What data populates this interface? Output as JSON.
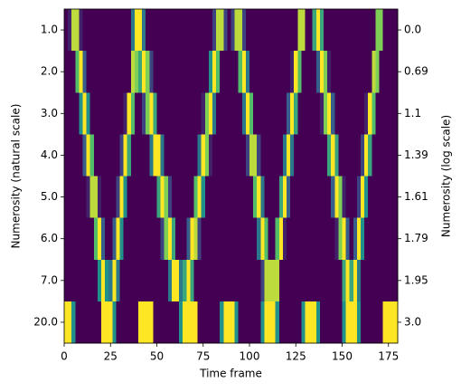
{
  "chart_data": {
    "type": "heatmap",
    "xlabel": "Time frame",
    "ylabel": "Numerosity (natural scale)",
    "y2label": "Numerosity (log scale)",
    "categories": [
      "1.0",
      "2.0",
      "3.0",
      "4.0",
      "5.0",
      "6.0",
      "7.0",
      "20.0"
    ],
    "y2categories": [
      "0.0",
      "0.69",
      "1.1",
      "1.39",
      "1.61",
      "1.79",
      "1.95",
      "3.0"
    ],
    "xlim": [
      0,
      180
    ],
    "xticks": [
      0,
      25,
      50,
      75,
      100,
      125,
      150,
      175
    ],
    "vlim": [
      0,
      1
    ],
    "colormap": [
      "#440154",
      "#3b528b",
      "#21918c",
      "#5ec962",
      "#fde725"
    ],
    "values": [
      [
        0,
        0.1,
        0.9,
        0.9,
        0.1,
        0,
        0,
        0,
        0,
        0,
        0,
        0,
        0,
        0,
        0,
        0,
        0,
        0,
        0.4,
        1,
        1,
        0.4,
        0,
        0,
        0,
        0,
        0,
        0,
        0,
        0,
        0,
        0,
        0,
        0,
        0,
        0,
        0,
        0,
        0,
        0,
        0.2,
        0.9,
        0.9,
        0.2,
        0,
        0.2,
        0.9,
        0.9,
        0.2,
        0,
        0,
        0,
        0,
        0,
        0,
        0,
        0,
        0,
        0,
        0,
        0,
        0,
        0,
        0.9,
        0.9,
        0,
        0,
        0.6,
        1,
        0.6,
        0,
        0,
        0,
        0,
        0,
        0,
        0,
        0,
        0,
        0,
        0,
        0,
        0,
        0,
        0.8,
        0.8,
        0,
        0,
        0,
        0
      ],
      [
        0,
        0,
        0,
        0.7,
        1,
        0.3,
        0,
        0,
        0,
        0,
        0,
        0,
        0,
        0,
        0,
        0,
        0,
        0,
        0.9,
        0.8,
        0.6,
        1,
        0.8,
        0.2,
        0,
        0,
        0,
        0,
        0,
        0,
        0,
        0,
        0,
        0,
        0,
        0,
        0,
        0,
        0,
        0.5,
        1,
        0.7,
        0,
        0,
        0,
        0,
        0,
        0.7,
        1,
        0.4,
        0,
        0,
        0,
        0,
        0,
        0,
        0,
        0,
        0,
        0,
        0,
        0.1,
        1,
        0.7,
        0,
        0,
        0,
        0,
        0.3,
        1,
        0.8,
        0.1,
        0,
        0,
        0,
        0,
        0,
        0,
        0,
        0,
        0,
        0,
        0,
        0.9,
        0.8,
        0,
        0,
        0,
        0,
        0
      ],
      [
        0,
        0,
        0,
        0,
        0.5,
        1,
        0.5,
        0,
        0,
        0,
        0,
        0,
        0,
        0,
        0,
        0,
        0.1,
        1,
        0.7,
        0,
        0,
        0.2,
        0.8,
        1,
        0.6,
        0,
        0,
        0,
        0,
        0,
        0,
        0,
        0,
        0,
        0,
        0,
        0,
        0.1,
        0.8,
        1,
        0.4,
        0,
        0,
        0,
        0,
        0,
        0,
        0,
        0.4,
        1,
        0.7,
        0,
        0,
        0,
        0,
        0,
        0,
        0,
        0,
        0,
        0.3,
        1,
        0.6,
        0,
        0,
        0,
        0,
        0,
        0,
        0.1,
        0.8,
        1,
        0.3,
        0,
        0,
        0,
        0,
        0,
        0,
        0,
        0,
        0.1,
        1,
        0.7,
        0,
        0,
        0,
        0,
        0,
        0
      ],
      [
        0,
        0,
        0,
        0,
        0,
        0.3,
        1,
        0.7,
        0,
        0,
        0,
        0,
        0,
        0,
        0,
        0.2,
        1,
        0.6,
        0,
        0,
        0,
        0,
        0,
        0.4,
        1,
        1,
        0.4,
        0,
        0,
        0,
        0,
        0,
        0,
        0,
        0,
        0,
        0.4,
        1,
        0.8,
        0.1,
        0,
        0,
        0,
        0,
        0,
        0,
        0,
        0,
        0,
        0.2,
        0.9,
        0.9,
        0.2,
        0,
        0,
        0,
        0,
        0,
        0,
        0.4,
        1,
        0.4,
        0,
        0,
        0,
        0,
        0,
        0,
        0,
        0,
        0,
        0.6,
        1,
        0.6,
        0,
        0,
        0,
        0,
        0,
        0,
        0.2,
        1,
        0.6,
        0,
        0,
        0,
        0,
        0,
        0,
        0
      ],
      [
        0,
        0,
        0,
        0,
        0,
        0,
        0.1,
        0.9,
        0.9,
        0.1,
        0,
        0,
        0,
        0,
        0.2,
        1,
        0.5,
        0,
        0,
        0,
        0,
        0,
        0,
        0,
        0,
        0.6,
        1,
        0.8,
        0.2,
        0,
        0,
        0,
        0,
        0,
        0,
        0.7,
        1,
        0.5,
        0,
        0,
        0,
        0,
        0,
        0,
        0,
        0,
        0,
        0,
        0,
        0,
        0,
        0.7,
        1,
        0.4,
        0,
        0,
        0,
        0,
        0.6,
        1,
        0.3,
        0,
        0,
        0,
        0,
        0,
        0,
        0,
        0,
        0,
        0,
        0,
        0.3,
        1,
        0.8,
        0.1,
        0,
        0,
        0,
        0.2,
        1,
        0.5,
        0,
        0,
        0,
        0,
        0,
        0,
        0,
        0
      ],
      [
        0,
        0,
        0,
        0,
        0,
        0,
        0,
        0,
        0.7,
        1,
        0.3,
        0,
        0,
        0.3,
        1,
        0.5,
        0,
        0,
        0,
        0,
        0,
        0,
        0,
        0,
        0,
        0,
        0.2,
        0.8,
        1,
        0.6,
        0,
        0,
        0,
        0.3,
        1,
        0.9,
        0.2,
        0,
        0,
        0,
        0,
        0,
        0,
        0,
        0,
        0,
        0,
        0,
        0,
        0,
        0,
        0,
        0.4,
        1,
        0.7,
        0,
        0,
        0.7,
        1,
        0.1,
        0,
        0,
        0,
        0,
        0,
        0,
        0,
        0,
        0,
        0,
        0,
        0,
        0,
        0.1,
        0.8,
        1,
        0.3,
        0,
        0.3,
        1,
        0.5,
        0,
        0,
        0,
        0,
        0,
        0,
        0,
        0,
        0
      ],
      [
        0,
        0,
        0,
        0,
        0,
        0,
        0,
        0,
        0,
        0.5,
        1,
        0.5,
        0.4,
        1,
        0.4,
        0,
        0,
        0,
        0,
        0,
        0,
        0,
        0,
        0,
        0,
        0,
        0,
        0,
        0.4,
        1,
        1,
        0.4,
        0.6,
        1,
        0.6,
        0,
        0,
        0,
        0,
        0,
        0,
        0,
        0,
        0,
        0,
        0,
        0,
        0,
        0,
        0,
        0,
        0,
        0,
        0.2,
        0.9,
        0.9,
        0.9,
        0.9,
        0,
        0,
        0,
        0,
        0,
        0,
        0,
        0,
        0,
        0,
        0,
        0,
        0,
        0,
        0,
        0,
        0,
        0.6,
        1,
        0.6,
        1,
        0.4,
        0,
        0,
        0,
        0,
        0,
        0,
        0,
        0,
        0,
        0
      ],
      [
        1,
        1,
        0.5,
        0,
        0,
        0,
        0,
        0,
        0,
        0,
        1,
        1,
        1,
        0.5,
        0,
        0,
        0,
        0,
        0,
        0,
        1,
        1,
        1,
        1,
        0,
        0,
        0,
        0,
        0,
        0,
        0,
        0.5,
        1,
        1,
        1,
        1,
        0,
        0,
        0,
        0,
        0,
        0,
        0.5,
        1,
        1,
        1,
        0.5,
        0,
        0,
        0,
        0,
        0,
        0,
        0.5,
        1,
        1,
        1,
        0.5,
        0,
        0,
        0,
        0,
        0,
        0,
        0.5,
        1,
        1,
        1,
        0.5,
        0,
        0,
        0,
        0,
        0,
        0,
        0.5,
        1,
        1,
        1,
        0.5,
        0,
        0,
        0,
        0,
        0,
        0,
        1,
        1,
        1,
        1
      ]
    ]
  }
}
